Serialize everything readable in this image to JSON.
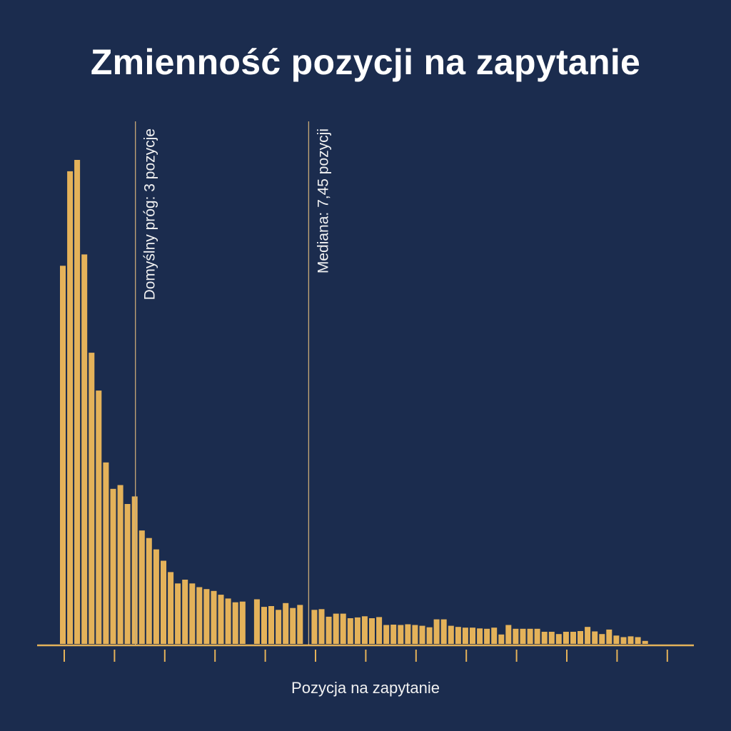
{
  "chart_data": {
    "type": "bar",
    "title": "Zmienność pozycji na zapytanie",
    "xlabel": "Pozycja na zapytanie",
    "ylabel": "",
    "grid": false,
    "values": [
      100,
      125,
      128,
      103,
      77,
      67,
      48,
      41,
      42,
      37,
      39,
      30,
      28,
      25,
      22,
      19,
      16,
      17,
      16,
      15,
      14.5,
      14,
      13,
      12,
      11,
      11.2,
      0,
      11.8,
      9.8,
      10,
      9,
      10.8,
      9.5,
      10.3,
      0,
      9,
      9.2,
      7.2,
      8,
      8,
      6.8,
      7,
      7.3,
      6.8,
      7.1,
      5,
      5.1,
      5,
      5.2,
      5,
      4.8,
      4.4,
      6.5,
      6.5,
      4.8,
      4.5,
      4.3,
      4.3,
      4.1,
      4,
      4.3,
      2.5,
      5,
      4,
      4,
      4,
      4,
      3.2,
      3.2,
      2.6,
      3.2,
      3.2,
      3.4,
      4.5,
      3.3,
      2.6,
      3.8,
      2.2,
      1.8,
      2.0,
      1.8,
      0.8
    ],
    "reference_lines": [
      {
        "label": "Domyślny próg: 3 pozycje",
        "bar_index": 10.5
      },
      {
        "label": "Mediana: 7,45 pozycji",
        "bar_index": 34.6
      }
    ]
  }
}
